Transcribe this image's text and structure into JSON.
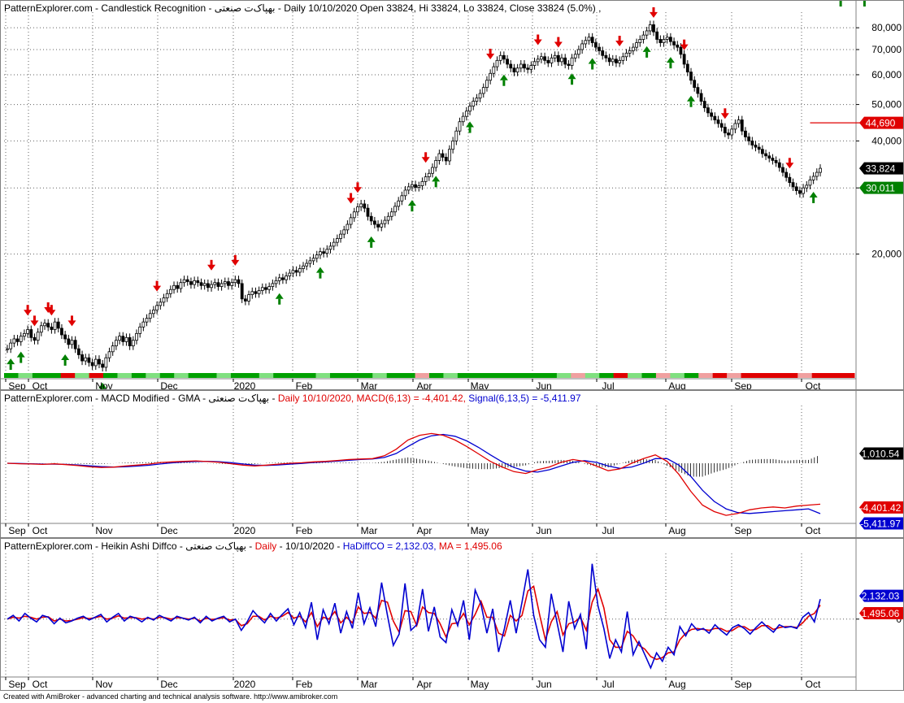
{
  "panes": {
    "price": {
      "title_parts": [
        "PatternExplorer.com - Candlestick Recognition - ",
        "بهپاک‌ت صنعتی",
        " - Daily 10/10/2020 Open 33824, Hi 33824, Lo 33824, Close 33824 (5.0%) ,"
      ]
    },
    "macd": {
      "title_black": "PatternExplorer.com - MACD Modified  - GMA - بهپاک‌ت صنعتی - ",
      "title_red": "Daily 10/10/2020, MACD(6,13) = -4,401.42, ",
      "title_blue": "Signal(6,13,5) = -5,411.97"
    },
    "heikin": {
      "title_black": "PatternExplorer.com - Heikin Ashi Diffco - بهپاک‌ت صنعتی - ",
      "title_red": "Daily ",
      "title_black2": "- 10/10/2020 - ",
      "title_blue": "HaDiffCO = 2,132.03, ",
      "title_red2": "MA = 1,495.06"
    }
  },
  "footer": "Created with AmiBroker - advanced charting and technical analysis software. http://www.amibroker.com",
  "x_axis": {
    "labels": [
      {
        "text": "Sep",
        "pos": 20
      },
      {
        "text": "Oct",
        "pos": 48
      },
      {
        "text": "Nov",
        "pos": 127
      },
      {
        "text": "Dec",
        "pos": 207
      },
      {
        "text": "2020",
        "pos": 300
      },
      {
        "text": "Feb",
        "pos": 373
      },
      {
        "text": "Mar",
        "pos": 453
      },
      {
        "text": "Apr",
        "pos": 521
      },
      {
        "text": "May",
        "pos": 589
      },
      {
        "text": "Jun",
        "pos": 668
      },
      {
        "text": "Jul",
        "pos": 747
      },
      {
        "text": "Aug",
        "pos": 832
      },
      {
        "text": "Sep",
        "pos": 913
      },
      {
        "text": "Oct",
        "pos": 999
      }
    ]
  },
  "chart_data": [
    {
      "type": "candlestick",
      "y_scale": "log",
      "ylim": [
        9800,
        88000
      ],
      "y_ticks": [
        20000,
        30000,
        40000,
        50000,
        60000,
        70000,
        80000
      ],
      "y_tick_labels": [
        "20,000",
        "",
        "40,000",
        "50,000",
        "60,000",
        "70,000",
        "80,000"
      ],
      "badges": [
        {
          "label": "44,690",
          "value": 44690,
          "color": "#e00000",
          "text_color": "#ffffff"
        },
        {
          "label": "33,824",
          "value": 33824,
          "color": "#000000",
          "text_color": "#ffffff"
        },
        {
          "label": "30,011",
          "value": 30011,
          "color": "#008000",
          "text_color": "#ffffff"
        }
      ],
      "resistance_line": {
        "value": 44690,
        "from_index": 236,
        "to_index": 252
      },
      "close_series": [
        11200,
        11600,
        11900,
        11700,
        12100,
        12300,
        12600,
        12000,
        11800,
        12400,
        12900,
        13100,
        12800,
        12600,
        13200,
        12700,
        12200,
        11900,
        11500,
        11800,
        11200,
        10800,
        10400,
        10600,
        10300,
        10100,
        10500,
        10200,
        10000,
        10600,
        11000,
        11400,
        11800,
        12100,
        11700,
        12000,
        11400,
        11800,
        12300,
        12800,
        13200,
        13500,
        13900,
        14200,
        14600,
        14900,
        15300,
        15700,
        16100,
        16500,
        16200,
        16800,
        17100,
        16900,
        16600,
        17000,
        16800,
        16500,
        16700,
        16300,
        16600,
        16800,
        16400,
        16700,
        16900,
        16500,
        16800,
        17100,
        16700,
        15200,
        15000,
        15600,
        15900,
        15700,
        16000,
        16300,
        16100,
        16400,
        16700,
        17000,
        17300,
        17100,
        17500,
        17800,
        18100,
        17900,
        18300,
        18600,
        18900,
        19200,
        19500,
        19900,
        20300,
        20100,
        20600,
        21000,
        21500,
        22000,
        22600,
        23200,
        24000,
        25000,
        25900,
        26700,
        27200,
        26500,
        25200,
        24500,
        24000,
        23600,
        24100,
        24600,
        25200,
        25900,
        26800,
        27700,
        28600,
        29600,
        30200,
        30600,
        30100,
        30400,
        31200,
        32100,
        32800,
        34000,
        35500,
        37000,
        36200,
        35400,
        38000,
        40000,
        42500,
        45000,
        46500,
        48000,
        49500,
        51000,
        52000,
        53500,
        55500,
        58000,
        60500,
        63000,
        65500,
        67500,
        66000,
        64000,
        62500,
        61000,
        62500,
        64000,
        62500,
        62000,
        63500,
        65000,
        66000,
        67000,
        65500,
        64500,
        66500,
        67500,
        65000,
        66500,
        64000,
        63500,
        66500,
        68000,
        70000,
        72500,
        74000,
        75500,
        73000,
        71000,
        69500,
        67500,
        66500,
        65000,
        66000,
        64500,
        65500,
        67000,
        68500,
        69500,
        71000,
        73000,
        74500,
        76500,
        78500,
        81500,
        78000,
        74500,
        73000,
        74500,
        75500,
        73500,
        72000,
        71000,
        68000,
        64000,
        61000,
        58000,
        55500,
        53500,
        51000,
        49000,
        47500,
        46500,
        45500,
        44500,
        43500,
        42000,
        41500,
        43000,
        44500,
        45500,
        42500,
        41000,
        40000,
        39000,
        38500,
        38000,
        37000,
        36500,
        36000,
        35500,
        35000,
        34000,
        33000,
        32000,
        31000,
        30200,
        29500,
        29000,
        30000,
        30500,
        31500,
        32200,
        33000,
        33824
      ],
      "signals": {
        "down_indices": [
          6,
          8,
          12,
          13,
          19,
          44,
          60,
          67,
          101,
          103,
          123,
          142,
          156,
          162,
          180,
          190,
          199,
          211,
          230
        ],
        "up_indices": [
          1,
          4,
          17,
          28,
          80,
          92,
          107,
          119,
          126,
          136,
          146,
          166,
          172,
          188,
          195,
          201,
          237,
          245,
          252
        ]
      },
      "bottom_color_band": [
        "#00a000",
        "#80e080",
        "#00a000",
        "#00a000",
        "#e00000",
        "#80e080",
        "#e00000",
        "#00a000",
        "#80e080",
        "#00a000",
        "#80e080",
        "#00a000",
        "#80e080",
        "#00a000",
        "#00a000",
        "#80e080",
        "#00a000",
        "#00a000",
        "#80e080",
        "#00a000",
        "#00a000",
        "#00a000",
        "#80e080",
        "#00a000",
        "#00a000",
        "#00a000",
        "#80e080",
        "#00a000",
        "#00a000",
        "#f0a0a0",
        "#00a000",
        "#80e080",
        "#00a000",
        "#00a000",
        "#00a000",
        "#00a000",
        "#00a000",
        "#00a000",
        "#00a000",
        "#80e080",
        "#f0a0a0",
        "#80e080",
        "#00a000",
        "#e00000",
        "#80e080",
        "#00a000",
        "#f0a0a0",
        "#80e080",
        "#00a000",
        "#f0a0a0",
        "#e00000",
        "#f0a0a0",
        "#e00000",
        "#e00000",
        "#e00000",
        "#e00000",
        "#f0a0a0",
        "#e00000",
        "#e00000",
        "#e00000"
      ]
    },
    {
      "type": "line",
      "name_hint": "MACD pane",
      "badges": [
        {
          "label": "1,010.54",
          "value": 1010.54,
          "color": "#000000",
          "text_color": "#ffffff"
        },
        {
          "label": "-4,401.42",
          "value": -4401.42,
          "color": "#e00000",
          "text_color": "#ffffff"
        },
        {
          "label": "-5,411.97",
          "value": -5411.97,
          "color": "#0000d0",
          "text_color": "#ffffff"
        }
      ],
      "ylim": [
        -6200,
        6200
      ],
      "series": [
        {
          "name": "MACD(6,13)",
          "color": "#e00000",
          "values": [
            0,
            -50,
            -80,
            -120,
            -60,
            -150,
            -250,
            -380,
            -450,
            -420,
            -300,
            -200,
            -100,
            80,
            150,
            200,
            250,
            180,
            100,
            -50,
            -200,
            -300,
            -200,
            -100,
            0,
            50,
            150,
            200,
            300,
            400,
            450,
            500,
            800,
            1500,
            2500,
            3000,
            3200,
            3000,
            2500,
            1800,
            1000,
            200,
            -400,
            -900,
            -1100,
            -700,
            -400,
            100,
            400,
            200,
            -300,
            -800,
            -600,
            0,
            500,
            900,
            200,
            -1200,
            -3000,
            -4500,
            -5200,
            -5600,
            -5400,
            -5000,
            -4800,
            -4700,
            -4800,
            -4600,
            -4500,
            -4401
          ]
        },
        {
          "name": "Signal(6,13,5)",
          "color": "#0000d0",
          "values": [
            0,
            -30,
            -60,
            -90,
            -100,
            -120,
            -180,
            -280,
            -360,
            -410,
            -380,
            -310,
            -220,
            -80,
            40,
            130,
            190,
            200,
            160,
            60,
            -80,
            -200,
            -240,
            -180,
            -100,
            -20,
            80,
            150,
            230,
            320,
            400,
            460,
            620,
            1050,
            1800,
            2500,
            2950,
            3100,
            2900,
            2400,
            1700,
            900,
            150,
            -450,
            -850,
            -950,
            -700,
            -300,
            100,
            280,
            100,
            -300,
            -550,
            -400,
            0,
            500,
            500,
            -200,
            -1400,
            -2900,
            -4100,
            -4900,
            -5300,
            -5400,
            -5300,
            -5200,
            -5100,
            -5000,
            -4900,
            -5412
          ]
        }
      ],
      "histogram": [
        0,
        -20,
        -20,
        -30,
        40,
        -30,
        -70,
        -100,
        -90,
        -10,
        80,
        110,
        120,
        160,
        110,
        70,
        60,
        -20,
        -60,
        -110,
        -120,
        -100,
        40,
        80,
        100,
        70,
        70,
        50,
        70,
        80,
        50,
        40,
        180,
        450,
        700,
        500,
        250,
        -100,
        -400,
        -600,
        -700,
        -700,
        -550,
        -450,
        -250,
        250,
        300,
        400,
        300,
        -80,
        -400,
        -500,
        -50,
        400,
        500,
        400,
        -300,
        -1000,
        -1600,
        -1600,
        -1100,
        -700,
        -100,
        400,
        500,
        500,
        300,
        400,
        400,
        1010
      ]
    },
    {
      "type": "line",
      "name_hint": "Heikin Ashi pane",
      "badges": [
        {
          "label": "2,132.03",
          "value": 2132.03,
          "color": "#0000d0",
          "text_color": "#ffffff"
        },
        {
          "label": "1,495.06",
          "value": 1495.06,
          "color": "#e00000",
          "text_color": "#ffffff"
        }
      ],
      "zero_label": "0",
      "ylim": [
        -6000,
        7000
      ],
      "series": [
        {
          "name": "HaDiffCO",
          "color": "#0000d0",
          "values": [
            0,
            400,
            -200,
            600,
            100,
            -300,
            400,
            200,
            -500,
            100,
            -400,
            -200,
            100,
            300,
            -100,
            200,
            500,
            -300,
            200,
            600,
            -200,
            300,
            100,
            -300,
            200,
            -100,
            400,
            100,
            -200,
            300,
            100,
            -100,
            200,
            -400,
            300,
            -200,
            100,
            300,
            -300,
            0,
            -1200,
            -300,
            900,
            200,
            -400,
            600,
            -200,
            500,
            1100,
            -600,
            700,
            -900,
            1800,
            -2200,
            1000,
            -500,
            1700,
            -1500,
            800,
            -1000,
            2800,
            -500,
            1200,
            -800,
            3900,
            400,
            -2800,
            -1600,
            3800,
            -1200,
            -600,
            3200,
            -1300,
            1300,
            -1900,
            -2500,
            1000,
            -700,
            2000,
            -2200,
            3100,
            1600,
            -1500,
            1100,
            -3500,
            -1000,
            2000,
            -1500,
            1800,
            5300,
            400,
            -2200,
            -3000,
            2700,
            -400,
            -3500,
            1900,
            -1000,
            500,
            -3200,
            5900,
            1400,
            -1000,
            -4200,
            -2200,
            -3500,
            800,
            -3800,
            -2400,
            -3800,
            -5200,
            -3600,
            -4500,
            -3000,
            -3800,
            -800,
            -1800,
            -500,
            -1200,
            -1000,
            -1500,
            -600,
            -1200,
            -1700,
            -900,
            -600,
            -1000,
            -1600,
            -900,
            -300,
            -900,
            -1400,
            -600,
            -900,
            -800,
            -1000,
            200,
            700,
            -300,
            2132
          ]
        },
        {
          "name": "MA",
          "color": "#e00000",
          "values": [
            0,
            200,
            100,
            300,
            200,
            0,
            200,
            250,
            -200,
            0,
            -200,
            -150,
            0,
            150,
            50,
            150,
            300,
            0,
            100,
            350,
            100,
            150,
            150,
            0,
            100,
            0,
            200,
            150,
            0,
            150,
            100,
            0,
            100,
            -200,
            100,
            -50,
            50,
            150,
            -100,
            -50,
            -700,
            -500,
            300,
            300,
            -100,
            300,
            100,
            300,
            700,
            100,
            300,
            -300,
            700,
            -800,
            200,
            0,
            800,
            -400,
            200,
            -400,
            1300,
            600,
            700,
            100,
            2000,
            1800,
            -200,
            -1400,
            900,
            800,
            -700,
            1300,
            700,
            600,
            -500,
            -1900,
            -500,
            -400,
            600,
            -600,
            500,
            1900,
            200,
            200,
            -1500,
            -1800,
            400,
            -200,
            400,
            3000,
            3500,
            500,
            -2200,
            -300,
            800,
            -1700,
            -500,
            -300,
            200,
            -1200,
            1800,
            3200,
            1200,
            -2200,
            -3000,
            -3000,
            -1300,
            -1800,
            -2800,
            -3200,
            -4000,
            -4300,
            -4100,
            -3600,
            -3500,
            -2200,
            -1500,
            -1100,
            -1000,
            -1100,
            -1200,
            -1000,
            -1000,
            -1300,
            -1200,
            -800,
            -800,
            -1200,
            -1100,
            -700,
            -700,
            -1100,
            -900,
            -800,
            -800,
            -900,
            -400,
            300,
            600,
            1495
          ]
        }
      ]
    }
  ]
}
